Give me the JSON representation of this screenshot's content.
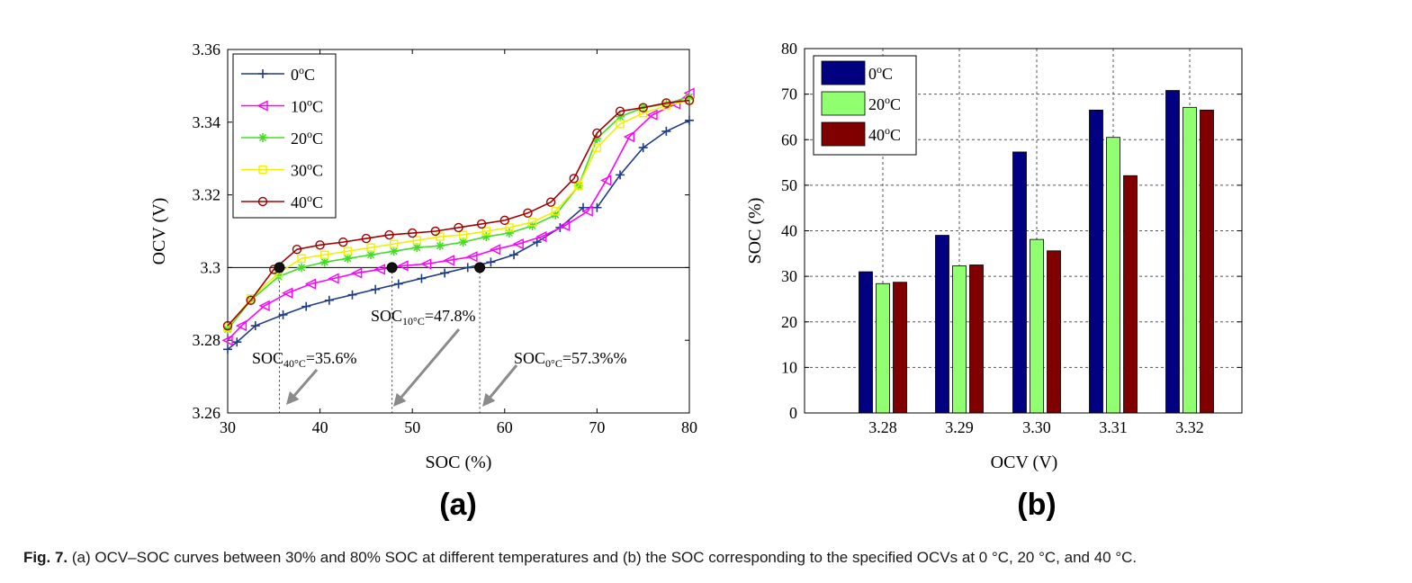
{
  "chart_data": [
    {
      "type": "line",
      "panel_label": "(a)",
      "xlabel": "SOC (%)",
      "ylabel": "OCV (V)",
      "xlim": [
        30,
        80
      ],
      "ylim": [
        3.26,
        3.36
      ],
      "xticks": [
        "30",
        "40",
        "50",
        "60",
        "70",
        "80"
      ],
      "yticks": [
        "3.26",
        "3.28",
        "3.3",
        "3.32",
        "3.34",
        "3.36"
      ],
      "legend_position": "top-left",
      "grid": false,
      "reference_line": 3.3,
      "series": [
        {
          "name": "0",
          "marker": "plus",
          "color": "#1f3c88",
          "x": [
            30,
            31,
            33,
            36,
            38.5,
            41,
            43.5,
            46,
            48.5,
            51,
            53.5,
            56,
            58.5,
            61,
            63.5,
            66,
            68.5,
            70,
            72.5,
            75,
            77.5,
            80
          ],
          "y": [
            3.2775,
            3.2795,
            3.284,
            3.287,
            3.2893,
            3.291,
            3.2925,
            3.294,
            3.2955,
            3.297,
            3.2985,
            3.3,
            3.3015,
            3.3035,
            3.307,
            3.311,
            3.3165,
            3.3165,
            3.3255,
            3.333,
            3.3375,
            3.3405
          ]
        },
        {
          "name": "10",
          "marker": "triangle-left",
          "color": "#ff00ff",
          "x": [
            30,
            31.5,
            34,
            36.5,
            39,
            41.5,
            44,
            46.5,
            49,
            51.5,
            54,
            56.5,
            59,
            61.5,
            64,
            66.5,
            69,
            71,
            73.5,
            76,
            78.5,
            80
          ],
          "y": [
            3.28,
            3.284,
            3.2895,
            3.293,
            3.2955,
            3.297,
            3.2985,
            3.2995,
            3.3005,
            3.301,
            3.302,
            3.303,
            3.305,
            3.3065,
            3.3085,
            3.3115,
            3.3155,
            3.324,
            3.336,
            3.342,
            3.345,
            3.348
          ]
        },
        {
          "name": "20",
          "marker": "star",
          "color": "#44dd22",
          "x": [
            30,
            32.5,
            35.5,
            38,
            40.5,
            43,
            45.5,
            48,
            50.5,
            53,
            55.5,
            58,
            60.5,
            63,
            65.5,
            68,
            70,
            72.5,
            75,
            77.5,
            80
          ],
          "y": [
            3.283,
            3.291,
            3.2975,
            3.3,
            3.3015,
            3.3025,
            3.3035,
            3.3045,
            3.3055,
            3.306,
            3.307,
            3.3085,
            3.3095,
            3.3115,
            3.3145,
            3.3225,
            3.3355,
            3.3415,
            3.344,
            3.345,
            3.347
          ]
        },
        {
          "name": "30",
          "marker": "square",
          "color": "#f0f000",
          "x": [
            30,
            32.5,
            35.5,
            38,
            40.5,
            43,
            45.5,
            48,
            50.5,
            53,
            55.5,
            58,
            60.5,
            63,
            65.5,
            68,
            70,
            72.5,
            75,
            77.5,
            80
          ],
          "y": [
            3.2835,
            3.2915,
            3.2985,
            3.3025,
            3.3035,
            3.3045,
            3.3055,
            3.3065,
            3.3075,
            3.3085,
            3.309,
            3.31,
            3.311,
            3.3125,
            3.3155,
            3.3225,
            3.333,
            3.3395,
            3.3425,
            3.3445,
            3.346
          ]
        },
        {
          "name": "40",
          "marker": "circle",
          "color": "#a00000",
          "x": [
            30,
            32.5,
            35,
            37.5,
            40,
            42.5,
            45,
            47.5,
            50,
            52.5,
            55,
            57.5,
            60,
            62.5,
            65,
            67.5,
            70,
            72.5,
            75,
            77.5,
            80
          ],
          "y": [
            3.284,
            3.291,
            3.2995,
            3.305,
            3.3062,
            3.307,
            3.308,
            3.309,
            3.3095,
            3.31,
            3.311,
            3.312,
            3.313,
            3.315,
            3.318,
            3.3245,
            3.337,
            3.343,
            3.344,
            3.3453,
            3.346
          ]
        }
      ],
      "intersections": [
        {
          "soc": 35.6,
          "ocv": 3.3
        },
        {
          "soc": 47.8,
          "ocv": 3.3
        },
        {
          "soc": 57.3,
          "ocv": 3.3
        }
      ],
      "annotations": [
        {
          "base": "SOC",
          "sub": "40°C",
          "tail": "=35.6%"
        },
        {
          "base": "SOC",
          "sub": "10°C",
          "tail": "=47.8%"
        },
        {
          "base": "SOC",
          "sub": "0°C",
          "tail": "=57.3%%"
        }
      ]
    },
    {
      "type": "bar",
      "panel_label": "(b)",
      "xlabel": "OCV (V)",
      "ylabel": "SOC (%)",
      "ylim": [
        0,
        80
      ],
      "yticks": [
        "0",
        "10",
        "20",
        "30",
        "40",
        "50",
        "60",
        "70",
        "80"
      ],
      "categories": [
        "3.28",
        "3.29",
        "3.30",
        "3.31",
        "3.32"
      ],
      "grid": true,
      "legend_position": "top-left",
      "series": [
        {
          "name": "0",
          "color": "#000080",
          "values": [
            31.0,
            39.0,
            57.3,
            66.5,
            70.8
          ]
        },
        {
          "name": "20",
          "color": "#90ff70",
          "values": [
            28.4,
            32.3,
            38.1,
            60.5,
            67.1
          ]
        },
        {
          "name": "40",
          "color": "#800000",
          "values": [
            28.7,
            32.5,
            35.6,
            52.1,
            66.5
          ]
        }
      ]
    }
  ],
  "legend_unit": "C",
  "legend_superscript": "o",
  "caption": {
    "label": "Fig. 7.",
    "text": " (a) OCV–SOC curves between 30% and 80% SOC at different temperatures and (b) the SOC corresponding to the specified OCVs at 0 °C, 20 °C, and 40 °C."
  }
}
